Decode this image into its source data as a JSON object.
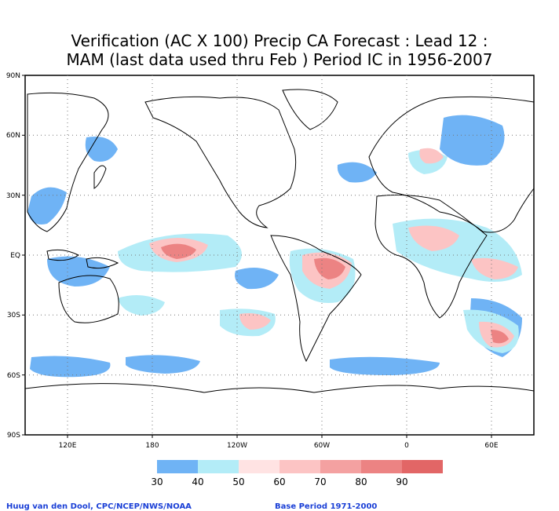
{
  "title": {
    "line1": "Verification (AC X 100) Precip CA Forecast : Lead 12 :",
    "line2": "MAM (last data used thru Feb ) Period IC in 1956-2007"
  },
  "map": {
    "lat_labels": [
      "90N",
      "60N",
      "30N",
      "EQ",
      "30S",
      "60S",
      "90S"
    ],
    "lon_labels": [
      "120E",
      "180",
      "120W",
      "60W",
      "0",
      "60E"
    ],
    "grid": "dotted"
  },
  "legend": {
    "labels": [
      "30",
      "40",
      "50",
      "60",
      "70",
      "80",
      "90"
    ],
    "colors": [
      "#6fb3f5",
      "#b3ecf7",
      "#ffe3e3",
      "#fcc4c4",
      "#f4a1a1",
      "#ec8383",
      "#e26666"
    ]
  },
  "footer": {
    "credit": "Huug van den Dool, CPC/NCEP/NWS/NOAA",
    "base_period": "Base Period 1971-2000"
  }
}
